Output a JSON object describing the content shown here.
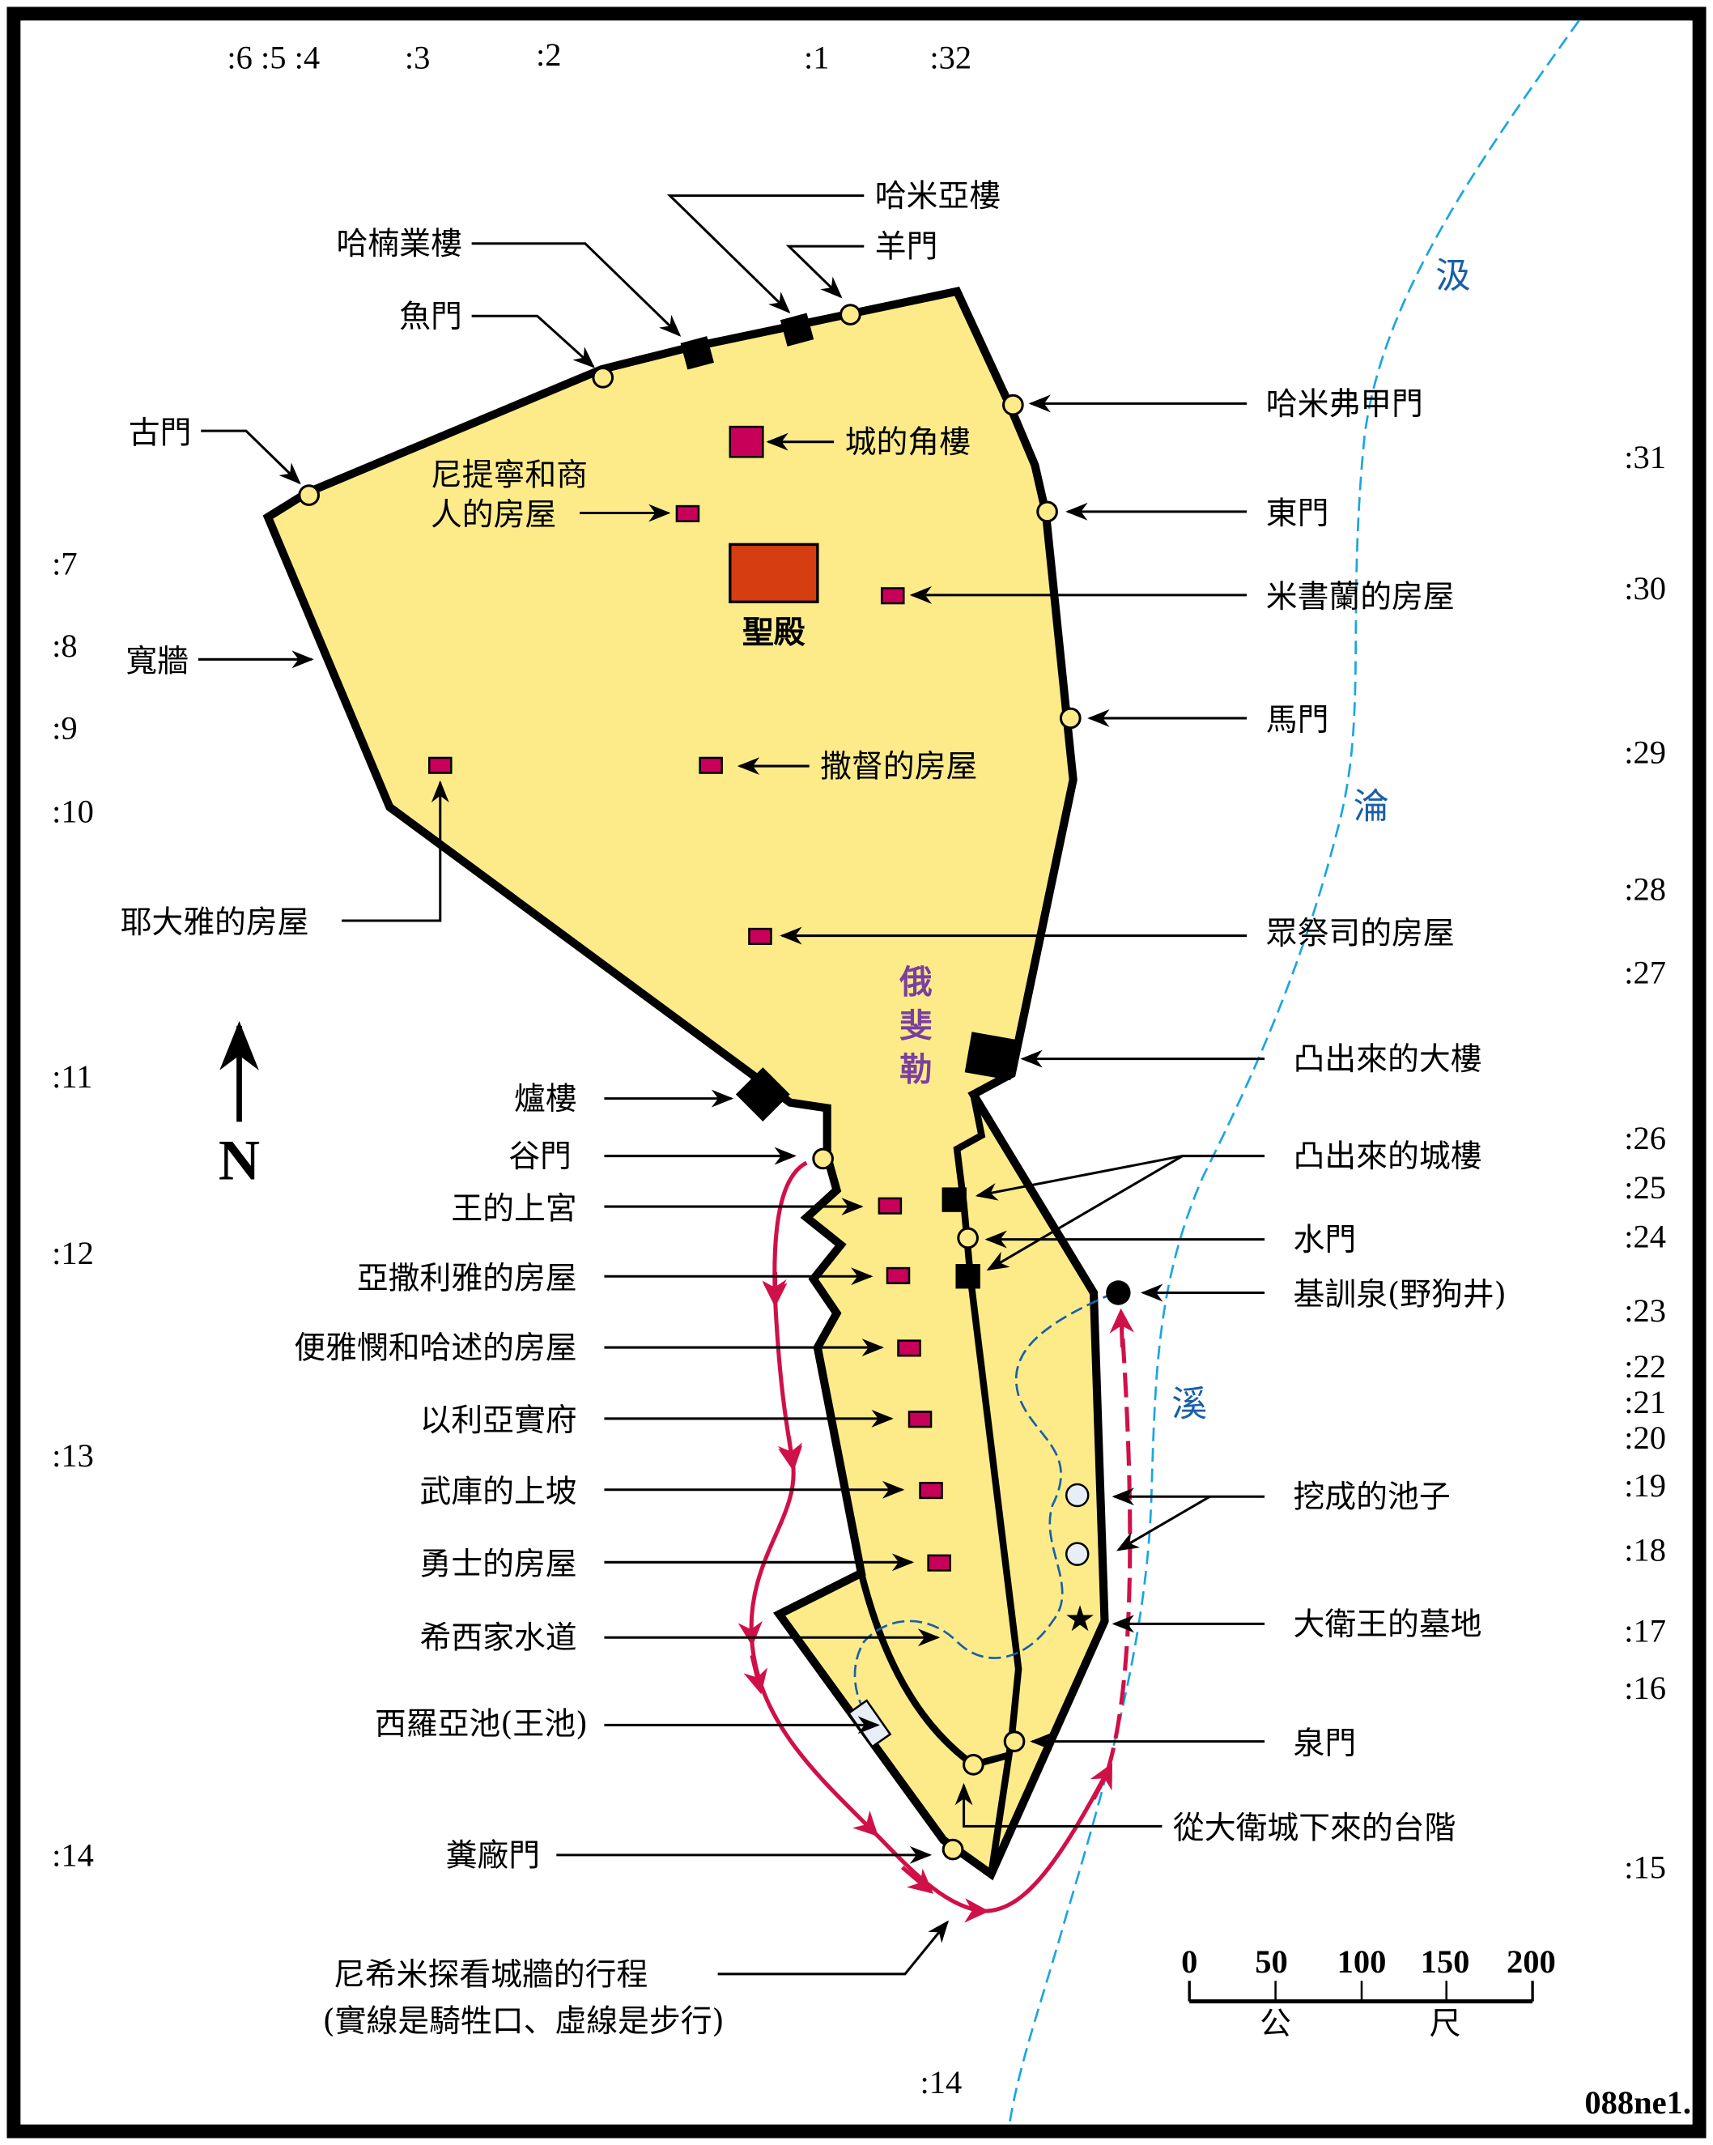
{
  "colors": {
    "city": "#fdeb8a",
    "temple": "#d63d10",
    "house": "#c8005a",
    "river": "#1aa6e0",
    "channel": "#1a5fa8",
    "route": "#d01048",
    "ophel": "#7b3f9e"
  },
  "labels": {
    "hammeah": "哈米亞樓",
    "sheep_gate": "羊門",
    "hananel": "哈楠業樓",
    "fish_gate": "魚門",
    "old_gate": "古門",
    "muster_gate": "哈米弗甲門",
    "corner_tower": "城的角樓",
    "merchants_1": "尼提寧和商",
    "merchants_2": "人的房屋",
    "east_gate": "東門",
    "meshullam": "米書蘭的房屋",
    "broad_wall": "寬牆",
    "horse_gate": "馬門",
    "zadok": "撒督的房屋",
    "temple": "聖殿",
    "jedaiah": "耶大雅的房屋",
    "priests": "眾祭司的房屋",
    "great_tower": "凸出來的大樓",
    "ovens": "爐樓",
    "valley_gate": "谷門",
    "upper_palace": "王的上宮",
    "azariah": "亞撒利雅的房屋",
    "benjamin_hasshub": "便雅憫和哈述的房屋",
    "eliashib": "以利亞實府",
    "armory": "武庫的上坡",
    "mighty_men": "勇士的房屋",
    "hezekiah_tunnel": "希西家水道",
    "siloam": "西羅亞池(王池)",
    "dung_gate": "糞廠門",
    "projecting_towers": "凸出來的城樓",
    "water_gate": "水門",
    "gihon": "基訓泉(野狗井)",
    "pools": "挖成的池子",
    "david_tombs": "大衛王的墓地",
    "fountain_gate": "泉門",
    "steps": "從大衛城下來的台階",
    "route_1": "尼希米探看城牆的行程",
    "route_2": "(實線是騎牲口、虛線是步行)"
  },
  "valley": {
    "c1": "汲",
    "c2": "淪",
    "c3": "溪"
  },
  "ophel": {
    "c1": "俄",
    "c2": "斐",
    "c3": "勒"
  },
  "north": "N",
  "scale": {
    "ticks": [
      "0",
      "50",
      "100",
      "150",
      "200"
    ],
    "unit_1": "公",
    "unit_2": "尺"
  },
  "code": "088ne1.",
  "verse_refs": {
    "top": [
      ":6 :5 :4",
      ":3",
      ":2",
      ":1",
      ":32"
    ],
    "right": [
      ":31",
      ":30",
      ":29",
      ":28",
      ":27",
      ":26",
      ":25",
      ":24",
      ":23",
      ":22",
      ":21",
      ":20",
      ":19",
      ":18",
      ":17",
      ":16",
      ":15"
    ],
    "left": [
      ":7",
      ":8",
      ":9",
      ":10",
      ":11",
      ":12",
      ":13",
      ":14"
    ],
    "bottom": [
      ":14"
    ]
  }
}
